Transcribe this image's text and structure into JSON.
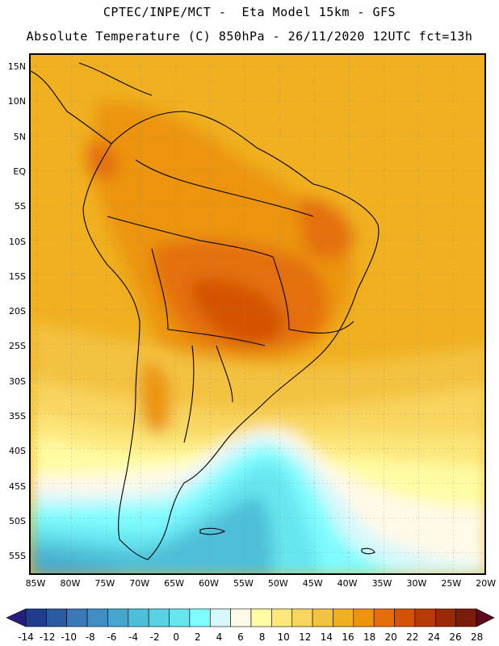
{
  "header": {
    "line1": "CPTEC/INPE/MCT -  Eta Model 15km - GFS",
    "line2": "Absolute Temperature (C) 850hPa - 26/11/2020 12UTC fct=13h"
  },
  "map": {
    "lat_labels": [
      "15N",
      "10N",
      "5N",
      "EQ",
      "5S",
      "10S",
      "15S",
      "20S",
      "25S",
      "30S",
      "35S",
      "40S",
      "45S",
      "50S",
      "55S"
    ],
    "lon_labels": [
      "85W",
      "80W",
      "75W",
      "70W",
      "65W",
      "60W",
      "55W",
      "50W",
      "45W",
      "40W",
      "35W",
      "30W",
      "25W",
      "20W"
    ]
  },
  "colorbar": {
    "labels": [
      "-14",
      "-12",
      "-10",
      "-8",
      "-6",
      "-4",
      "-2",
      "0",
      "2",
      "4",
      "6",
      "8",
      "10",
      "12",
      "14",
      "16",
      "18",
      "20",
      "22",
      "24",
      "26",
      "28"
    ],
    "colors": [
      "#1f3c8f",
      "#2a5aa0",
      "#3a78b8",
      "#3f8fc6",
      "#46a6cf",
      "#4dbfd8",
      "#58d2e2",
      "#66e6ef",
      "#7ffcff",
      "#d6f8fb",
      "#fff9e8",
      "#fffca4",
      "#fbe77a",
      "#f8d55e",
      "#f3c240",
      "#f0b020",
      "#ec9410",
      "#e46f08",
      "#d45204",
      "#b83a06",
      "#992a08",
      "#7a1c08"
    ],
    "left_tip": "#27207a",
    "right_tip": "#5a0a1a"
  }
}
